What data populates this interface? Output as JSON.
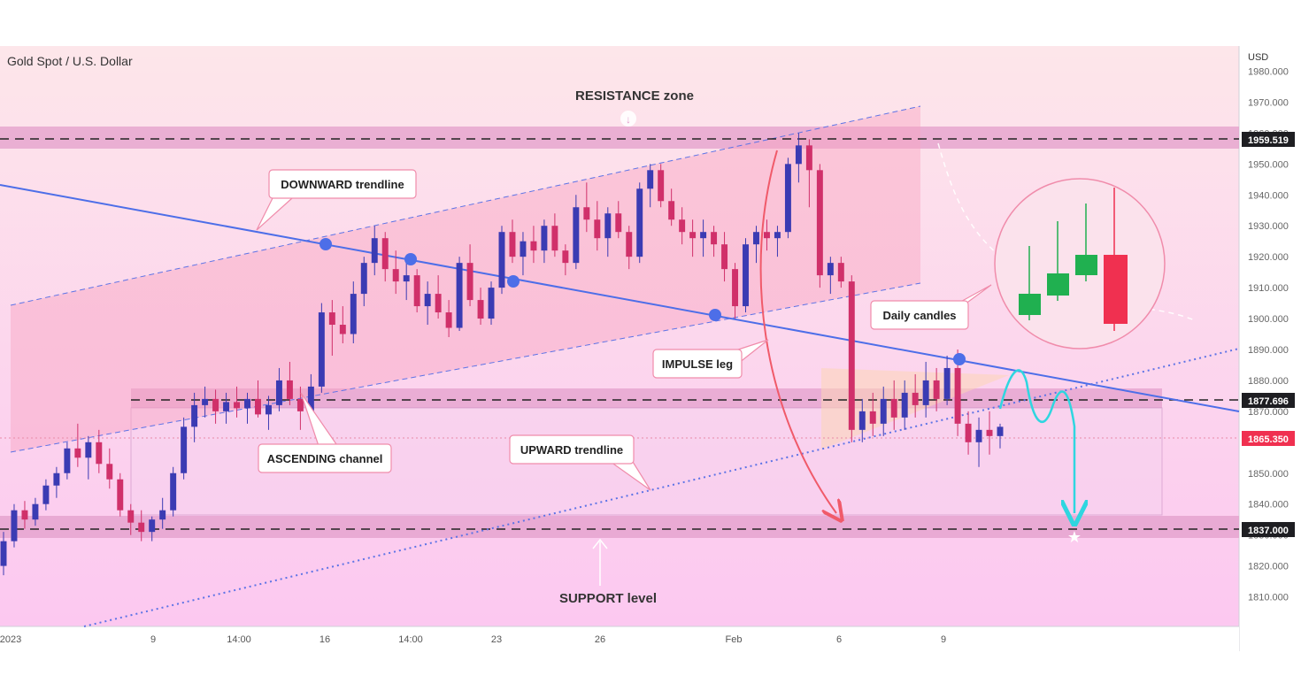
{
  "symbol_title": "Gold Spot / U.S. Dollar",
  "currency": "USD",
  "annotations": {
    "resistance": "RESISTANCE zone",
    "support": "SUPPORT level",
    "downward": "DOWNWARD trendline",
    "ascending": "ASCENDING channel",
    "upward": "UPWARD trendline",
    "impulse": "IMPULSE leg",
    "daily": "Daily candles"
  },
  "price_tags": {
    "resistance": "1959.519",
    "neckline": "1877.696",
    "current": "1865.350",
    "support": "1837.000"
  },
  "chart_data": {
    "type": "candlestick",
    "title": "Gold Spot / U.S. Dollar",
    "y_axis_label": "USD",
    "ylim": [
      1803,
      1983
    ],
    "y_ticks": [
      "1810.000",
      "1820.000",
      "1830.000",
      "1840.000",
      "1850.000",
      "1860.000",
      "1870.000",
      "1880.000",
      "1890.000",
      "1900.000",
      "1910.000",
      "1920.000",
      "1930.000",
      "1940.000",
      "1950.000",
      "1960.000",
      "1970.000",
      "1980.000"
    ],
    "x_ticks": [
      "2023",
      "9",
      "14:00",
      "16",
      "14:00",
      "23",
      "26",
      "Feb",
      "6",
      "9"
    ],
    "levels": {
      "resistance": 1959.519,
      "neckline": 1877.696,
      "current": 1865.35,
      "support": 1837.0
    },
    "candles": [
      [
        1820,
        1831,
        1817,
        1828
      ],
      [
        1828,
        1840,
        1826,
        1838
      ],
      [
        1838,
        1841,
        1832,
        1835
      ],
      [
        1835,
        1842,
        1833,
        1840
      ],
      [
        1840,
        1848,
        1838,
        1846
      ],
      [
        1846,
        1852,
        1842,
        1850
      ],
      [
        1850,
        1860,
        1848,
        1858
      ],
      [
        1858,
        1866,
        1852,
        1855
      ],
      [
        1855,
        1862,
        1848,
        1860
      ],
      [
        1860,
        1864,
        1850,
        1853
      ],
      [
        1853,
        1858,
        1845,
        1848
      ],
      [
        1848,
        1850,
        1836,
        1838
      ],
      [
        1838,
        1840,
        1830,
        1834
      ],
      [
        1834,
        1838,
        1828,
        1831
      ],
      [
        1831,
        1836,
        1828,
        1835
      ],
      [
        1835,
        1842,
        1832,
        1838
      ],
      [
        1838,
        1852,
        1836,
        1850
      ],
      [
        1850,
        1868,
        1848,
        1865
      ],
      [
        1865,
        1876,
        1860,
        1872
      ],
      [
        1872,
        1878,
        1868,
        1874
      ],
      [
        1874,
        1877,
        1866,
        1870
      ],
      [
        1870,
        1876,
        1866,
        1873
      ],
      [
        1873,
        1878,
        1868,
        1871
      ],
      [
        1871,
        1876,
        1866,
        1874
      ],
      [
        1874,
        1880,
        1868,
        1869
      ],
      [
        1869,
        1875,
        1864,
        1872
      ],
      [
        1872,
        1884,
        1870,
        1880
      ],
      [
        1880,
        1886,
        1872,
        1874
      ],
      [
        1874,
        1878,
        1864,
        1870
      ],
      [
        1870,
        1882,
        1868,
        1878
      ],
      [
        1878,
        1905,
        1876,
        1902
      ],
      [
        1902,
        1906,
        1888,
        1898
      ],
      [
        1898,
        1904,
        1892,
        1895
      ],
      [
        1895,
        1912,
        1892,
        1908
      ],
      [
        1908,
        1920,
        1904,
        1918
      ],
      [
        1918,
        1930,
        1914,
        1926
      ],
      [
        1926,
        1928,
        1912,
        1916
      ],
      [
        1916,
        1922,
        1908,
        1912
      ],
      [
        1912,
        1918,
        1906,
        1914
      ],
      [
        1914,
        1916,
        1902,
        1904
      ],
      [
        1904,
        1912,
        1898,
        1908
      ],
      [
        1908,
        1914,
        1900,
        1902
      ],
      [
        1902,
        1906,
        1894,
        1897
      ],
      [
        1897,
        1920,
        1896,
        1918
      ],
      [
        1918,
        1924,
        1904,
        1906
      ],
      [
        1906,
        1910,
        1898,
        1900
      ],
      [
        1900,
        1912,
        1898,
        1910
      ],
      [
        1910,
        1930,
        1908,
        1928
      ],
      [
        1928,
        1932,
        1918,
        1920
      ],
      [
        1920,
        1928,
        1914,
        1925
      ],
      [
        1925,
        1930,
        1918,
        1922
      ],
      [
        1922,
        1932,
        1918,
        1930
      ],
      [
        1930,
        1934,
        1920,
        1922
      ],
      [
        1922,
        1924,
        1914,
        1918
      ],
      [
        1918,
        1940,
        1916,
        1936
      ],
      [
        1936,
        1944,
        1928,
        1932
      ],
      [
        1932,
        1938,
        1922,
        1926
      ],
      [
        1926,
        1936,
        1920,
        1934
      ],
      [
        1934,
        1938,
        1926,
        1928
      ],
      [
        1928,
        1930,
        1916,
        1920
      ],
      [
        1920,
        1944,
        1918,
        1942
      ],
      [
        1942,
        1950,
        1936,
        1948
      ],
      [
        1948,
        1950,
        1936,
        1938
      ],
      [
        1938,
        1942,
        1930,
        1932
      ],
      [
        1932,
        1936,
        1924,
        1928
      ],
      [
        1928,
        1932,
        1920,
        1926
      ],
      [
        1926,
        1932,
        1920,
        1928
      ],
      [
        1928,
        1930,
        1920,
        1924
      ],
      [
        1924,
        1928,
        1912,
        1916
      ],
      [
        1916,
        1918,
        1900,
        1904
      ],
      [
        1904,
        1926,
        1902,
        1924
      ],
      [
        1924,
        1930,
        1918,
        1928
      ],
      [
        1928,
        1932,
        1922,
        1926
      ],
      [
        1926,
        1930,
        1920,
        1928
      ],
      [
        1928,
        1952,
        1926,
        1950
      ],
      [
        1950,
        1960,
        1944,
        1956
      ],
      [
        1956,
        1958,
        1936,
        1948
      ],
      [
        1948,
        1950,
        1910,
        1914
      ],
      [
        1914,
        1920,
        1908,
        1918
      ],
      [
        1918,
        1920,
        1910,
        1912
      ],
      [
        1912,
        1914,
        1860,
        1864
      ],
      [
        1864,
        1874,
        1860,
        1870
      ],
      [
        1870,
        1876,
        1862,
        1866
      ],
      [
        1866,
        1878,
        1862,
        1874
      ],
      [
        1874,
        1880,
        1864,
        1868
      ],
      [
        1868,
        1880,
        1864,
        1876
      ],
      [
        1876,
        1882,
        1868,
        1872
      ],
      [
        1872,
        1886,
        1868,
        1880
      ],
      [
        1880,
        1884,
        1870,
        1874
      ],
      [
        1874,
        1888,
        1872,
        1884
      ],
      [
        1884,
        1890,
        1862,
        1866
      ],
      [
        1866,
        1870,
        1856,
        1860
      ],
      [
        1860,
        1868,
        1852,
        1864
      ],
      [
        1864,
        1870,
        1856,
        1862
      ],
      [
        1862,
        1866,
        1858,
        1865
      ]
    ],
    "inset_daily_candles": [
      {
        "open": 1,
        "close": 1
      },
      {
        "open": 1,
        "close": 1
      },
      {
        "open": 1,
        "close": 1
      },
      {
        "open": 1,
        "close": 0
      }
    ]
  }
}
